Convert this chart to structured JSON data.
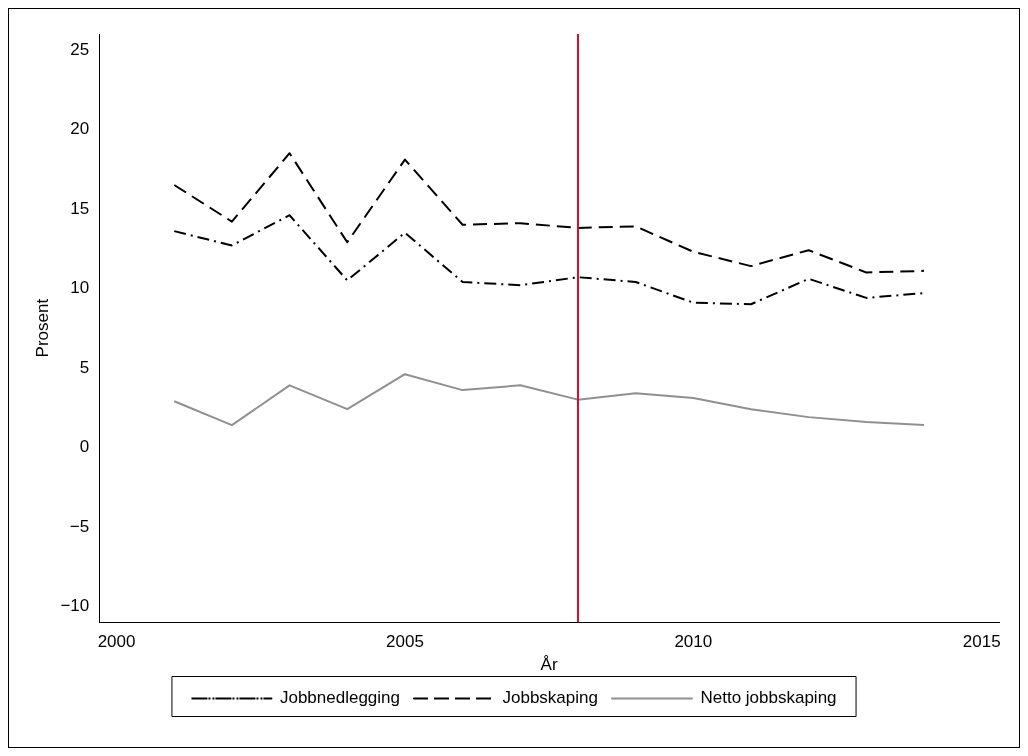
{
  "chart_data": {
    "type": "line",
    "xlabel": "År",
    "ylabel": "Prosent",
    "x": [
      2001,
      2002,
      2003,
      2004,
      2005,
      2006,
      2007,
      2008,
      2009,
      2010,
      2011,
      2012,
      2013,
      2014
    ],
    "series": [
      {
        "name": "Jobbnedlegging",
        "color": "#000000",
        "line_style": "dashdot",
        "values": [
          13.6,
          12.7,
          14.6,
          10.5,
          13.5,
          10.4,
          10.2,
          10.7,
          10.4,
          9.1,
          9.0,
          10.6,
          9.4,
          9.7
        ]
      },
      {
        "name": "Jobbskaping",
        "color": "#000000",
        "line_style": "dashed",
        "values": [
          16.5,
          14.2,
          18.5,
          12.9,
          18.1,
          14.0,
          14.1,
          13.8,
          13.9,
          12.3,
          11.4,
          12.4,
          11.0,
          11.1
        ]
      },
      {
        "name": "Netto jobbskaping",
        "color": "#909090",
        "line_style": "solid",
        "values": [
          2.9,
          1.4,
          3.9,
          2.4,
          4.6,
          3.6,
          3.9,
          3.0,
          3.4,
          3.1,
          2.4,
          1.9,
          1.6,
          1.4
        ]
      }
    ],
    "xlim": [
      1999.7,
      2015.3
    ],
    "xticks": [
      2000,
      2005,
      2010,
      2015
    ],
    "ylim": [
      -11,
      26
    ],
    "yticks": [
      {
        "value": -10,
        "label": "−10"
      },
      {
        "value": -5,
        "label": "−5"
      },
      0,
      5,
      10,
      15,
      20,
      25
    ],
    "ref_lines": [
      {
        "axis": "x",
        "value": 2008,
        "color": "#c8102e"
      }
    ],
    "grid": false,
    "legend": "bottom",
    "marker": "none"
  }
}
